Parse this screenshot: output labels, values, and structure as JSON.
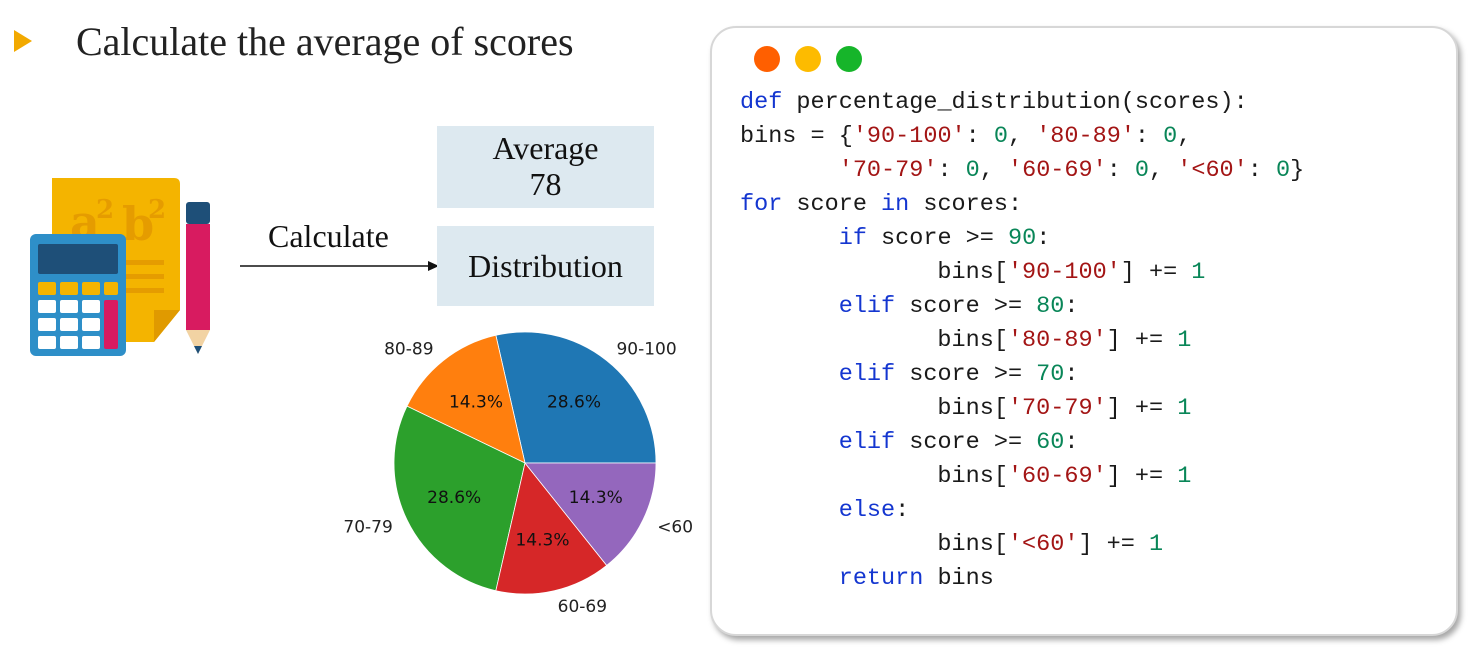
{
  "heading": "Calculate the average of scores",
  "arrow_label": "Calculate",
  "average_box": {
    "title": "Average",
    "value": "78"
  },
  "distribution_box": {
    "title": "Distribution"
  },
  "icons": {
    "bullet": "arrowhead-bullet-icon",
    "calculator": "calculator-pencil-icon",
    "window_controls": [
      "close-dot",
      "minimize-dot",
      "maximize-dot"
    ]
  },
  "colors": {
    "bullet": "#f2a900",
    "box_bg": "#dde9f0",
    "keyword": "#1436d0",
    "string": "#a31515",
    "number": "#098658",
    "dot_red": "#ff5f00",
    "dot_yellow": "#fdbb00",
    "dot_green": "#16b52a"
  },
  "chart_data": {
    "type": "pie",
    "categories": [
      "90-100",
      "80-89",
      "70-79",
      "60-69",
      "<60"
    ],
    "values": [
      28.6,
      14.3,
      28.6,
      14.3,
      14.3
    ],
    "value_labels": [
      "28.6%",
      "14.3%",
      "28.6%",
      "14.3%",
      "14.3%"
    ],
    "colors": [
      "#1f77b4",
      "#ff7f0e",
      "#2ca02c",
      "#d62728",
      "#9467bd"
    ],
    "start_angle": 0,
    "direction": "counterclockwise",
    "title": ""
  },
  "code": [
    [
      [
        "def",
        "kw"
      ],
      [
        " percentage_distribution(scores):",
        ""
      ]
    ],
    [
      [
        "bins = {",
        ""
      ],
      [
        "'90-100'",
        "str"
      ],
      [
        ": ",
        ""
      ],
      [
        "0",
        "num"
      ],
      [
        ", ",
        ""
      ],
      [
        "'80-89'",
        "str"
      ],
      [
        ": ",
        ""
      ],
      [
        "0",
        "num"
      ],
      [
        ",",
        ""
      ]
    ],
    [
      [
        "       ",
        ""
      ],
      [
        "'70-79'",
        "str"
      ],
      [
        ": ",
        ""
      ],
      [
        "0",
        "num"
      ],
      [
        ", ",
        ""
      ],
      [
        "'60-69'",
        "str"
      ],
      [
        ": ",
        ""
      ],
      [
        "0",
        "num"
      ],
      [
        ", ",
        ""
      ],
      [
        "'<60'",
        "str"
      ],
      [
        ": ",
        ""
      ],
      [
        "0",
        "num"
      ],
      [
        "}",
        ""
      ]
    ],
    [
      [
        "for",
        "kw"
      ],
      [
        " score ",
        ""
      ],
      [
        "in",
        "kw"
      ],
      [
        " scores:",
        ""
      ]
    ],
    [
      [
        "       ",
        ""
      ],
      [
        "if",
        "kw"
      ],
      [
        " score >= ",
        ""
      ],
      [
        "90",
        "num"
      ],
      [
        ":",
        ""
      ]
    ],
    [
      [
        "              bins[",
        ""
      ],
      [
        "'90-100'",
        "str"
      ],
      [
        "] += ",
        ""
      ],
      [
        "1",
        "num"
      ]
    ],
    [
      [
        "       ",
        ""
      ],
      [
        "elif",
        "kw"
      ],
      [
        " score >= ",
        ""
      ],
      [
        "80",
        "num"
      ],
      [
        ":",
        ""
      ]
    ],
    [
      [
        "              bins[",
        ""
      ],
      [
        "'80-89'",
        "str"
      ],
      [
        "] += ",
        ""
      ],
      [
        "1",
        "num"
      ]
    ],
    [
      [
        "       ",
        ""
      ],
      [
        "elif",
        "kw"
      ],
      [
        " score >= ",
        ""
      ],
      [
        "70",
        "num"
      ],
      [
        ":",
        ""
      ]
    ],
    [
      [
        "              bins[",
        ""
      ],
      [
        "'70-79'",
        "str"
      ],
      [
        "] += ",
        ""
      ],
      [
        "1",
        "num"
      ]
    ],
    [
      [
        "       ",
        ""
      ],
      [
        "elif",
        "kw"
      ],
      [
        " score >= ",
        ""
      ],
      [
        "60",
        "num"
      ],
      [
        ":",
        ""
      ]
    ],
    [
      [
        "              bins[",
        ""
      ],
      [
        "'60-69'",
        "str"
      ],
      [
        "] += ",
        ""
      ],
      [
        "1",
        "num"
      ]
    ],
    [
      [
        "       ",
        ""
      ],
      [
        "else",
        "kw"
      ],
      [
        ":",
        ""
      ]
    ],
    [
      [
        "              bins[",
        ""
      ],
      [
        "'<60'",
        "str"
      ],
      [
        "] += ",
        ""
      ],
      [
        "1",
        "num"
      ]
    ],
    [
      [
        "       ",
        ""
      ],
      [
        "return",
        "kw"
      ],
      [
        " bins",
        ""
      ]
    ]
  ]
}
